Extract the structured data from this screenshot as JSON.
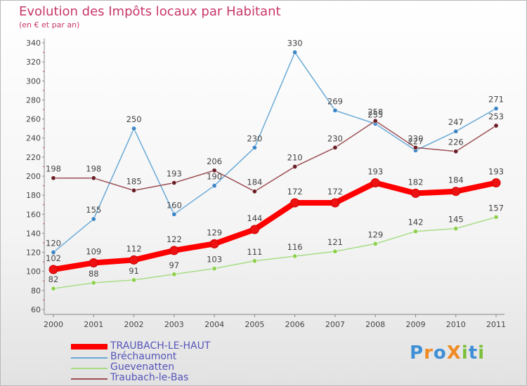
{
  "title": "Evolution des Impôts locaux par Habitant",
  "subtitle": "(en € et par an)",
  "brand": {
    "text": "ProXiti",
    "letters": [
      {
        "ch": "P",
        "color": "#3f8fd6"
      },
      {
        "ch": "r",
        "color": "#f08a24"
      },
      {
        "ch": "o",
        "color": "#3f8fd6"
      },
      {
        "ch": "X",
        "color": "#f08a24"
      },
      {
        "ch": "i",
        "color": "#7cbf3c"
      },
      {
        "ch": "t",
        "color": "#3f8fd6"
      },
      {
        "ch": "i",
        "color": "#7cbf3c"
      }
    ]
  },
  "chart_data": {
    "type": "line",
    "title": "Evolution des Impôts locaux par Habitant",
    "subtitle": "(en € et par an)",
    "x": [
      "2000",
      "2001",
      "2002",
      "2003",
      "2004",
      "2005",
      "2006",
      "2007",
      "2008",
      "2009",
      "2010",
      "2011"
    ],
    "ylim": [
      60,
      340
    ],
    "yticks": [
      60,
      80,
      100,
      120,
      140,
      160,
      180,
      200,
      220,
      240,
      260,
      280,
      300,
      320,
      340
    ],
    "grid": false,
    "legend": "bottom-left",
    "series": [
      {
        "name": "TRAUBACH-LE-HAUT",
        "color": "#ff0000",
        "marker": "#ee1111",
        "width": 8,
        "values": [
          102,
          109,
          112,
          122,
          129,
          144,
          172,
          172,
          193,
          182,
          184,
          193
        ]
      },
      {
        "name": "Bréchaumont",
        "color": "#6aaad6",
        "marker": "#3d86c6",
        "width": 1.5,
        "values": [
          120,
          155,
          250,
          160,
          190,
          230,
          330,
          269,
          255,
          227,
          247,
          271
        ]
      },
      {
        "name": "Guevenatten",
        "color": "#a8dd86",
        "marker": "#8ed04e",
        "width": 1.5,
        "values": [
          82,
          88,
          91,
          97,
          103,
          111,
          116,
          121,
          129,
          142,
          145,
          157
        ]
      },
      {
        "name": "Traubach-le-Bas",
        "color": "#9c4f55",
        "marker": "#6b1f26",
        "width": 1.5,
        "values": [
          198,
          198,
          185,
          193,
          206,
          184,
          210,
          230,
          258,
          230,
          226,
          253
        ]
      }
    ]
  }
}
